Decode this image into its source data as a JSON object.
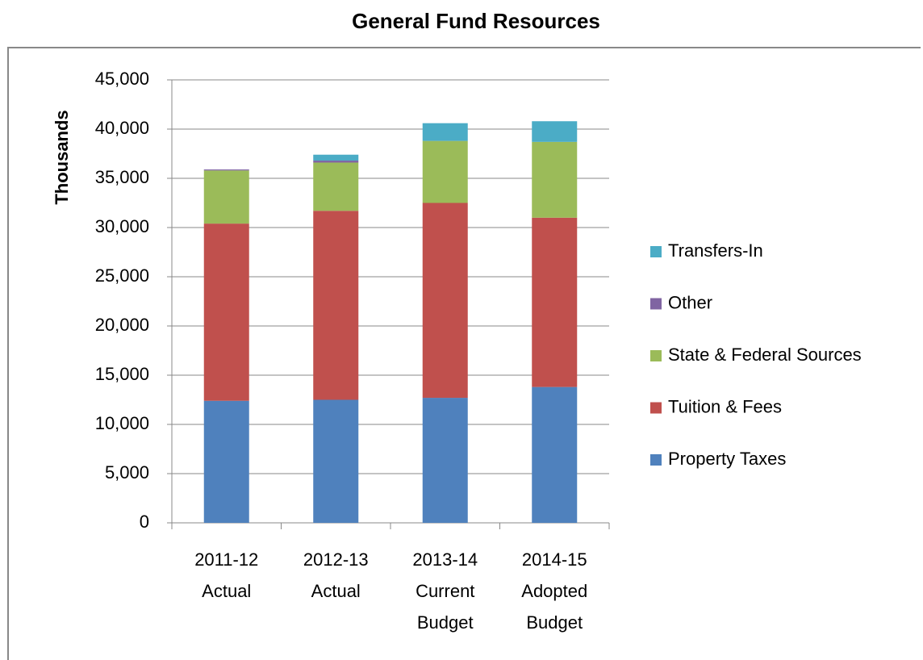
{
  "chart_data": {
    "type": "stacked_bar",
    "title": "General Fund Resources",
    "y_label": "Thousands",
    "categories": [
      [
        "2011-12",
        "Actual"
      ],
      [
        "2012-13",
        "Actual"
      ],
      [
        "2013-14",
        "Current",
        "Budget"
      ],
      [
        "2014-15",
        "Adopted",
        "Budget"
      ]
    ],
    "series": [
      {
        "name": "Property Taxes",
        "color": "#4f81bd",
        "values": [
          12400,
          12500,
          12700,
          13800
        ]
      },
      {
        "name": "Tuition & Fees",
        "color": "#c0504d",
        "values": [
          18000,
          19200,
          19800,
          17200
        ]
      },
      {
        "name": "State & Federal Sources",
        "color": "#9bbb59",
        "values": [
          5400,
          4900,
          6300,
          7700
        ]
      },
      {
        "name": "Other",
        "color": "#8064a2",
        "values": [
          100,
          200,
          0,
          0
        ]
      },
      {
        "name": "Transfers-In",
        "color": "#4bacc6",
        "values": [
          0,
          600,
          1800,
          2100
        ]
      }
    ],
    "ylim": [
      0,
      45000
    ],
    "yticks": [
      0,
      {
        "value": 5000,
        "label": "5,000"
      },
      {
        "value": 10000,
        "label": "10,000"
      },
      {
        "value": 15000,
        "label": "15,000"
      },
      {
        "value": 20000,
        "label": "20,000"
      },
      {
        "value": 25000,
        "label": "25,000"
      },
      {
        "value": 30000,
        "label": "30,000"
      },
      {
        "value": 35000,
        "label": "35,000"
      },
      {
        "value": 40000,
        "label": "40,000"
      },
      {
        "value": 45000,
        "label": "45,000"
      }
    ],
    "grid": true,
    "legend": "right"
  }
}
